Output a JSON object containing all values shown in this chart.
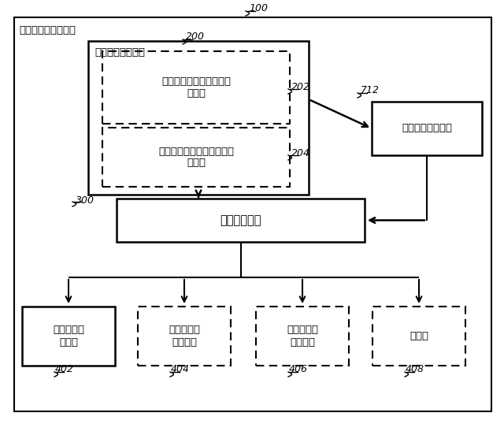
{
  "outer_border_label": "オーディオ処理装置",
  "label_100": "100",
  "label_200": "200",
  "label_202": "202",
  "label_204": "204",
  "label_300": "300",
  "label_712": "712",
  "label_402": "402",
  "label_404": "404",
  "label_406": "406",
  "label_408": "408",
  "box_audio_classifier_label": "オーディオ分類器",
  "box_content_classifier_label": "オーディオ・コンテンツ\n分類器",
  "box_context_classifier_label": "オーディオ・コンテキスト\n分類器",
  "box_smoothing_label": "型平滑化ユニット",
  "box_adjustment_label": "調整ユニット",
  "box_dialog_label": "ダイアログ\n向上器",
  "box_surround_label": "サラウンド\n仕想化器",
  "box_volume_label": "ボリューム\n平準化器",
  "box_equalizer_label": "等化器"
}
